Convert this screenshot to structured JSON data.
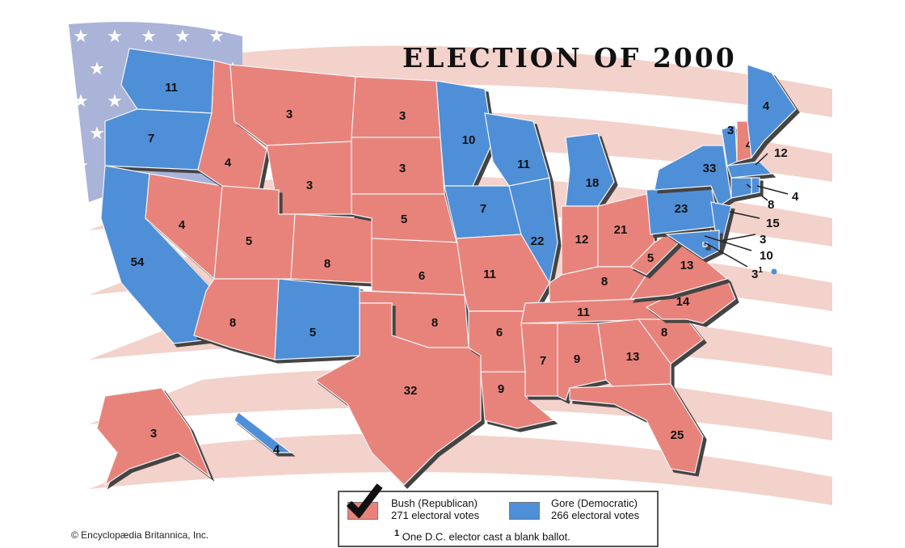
{
  "title": "ELECTION OF 2000",
  "copyright": "© Encyclopædia Britannica, Inc.",
  "colors": {
    "republican": "#e8837b",
    "democratic": "#4f8fd8",
    "flag_blue": "#aab3d8",
    "flag_stripe": "#f3d2cb"
  },
  "legend": {
    "bush": {
      "name": "Bush (Republican)",
      "votes": "271 electoral votes",
      "winner_icon": "checkmark-icon"
    },
    "gore": {
      "name": "Gore (Democratic)",
      "votes": "266 electoral votes"
    },
    "footnote_mark": "1",
    "footnote": "One D.C. elector cast a blank ballot."
  },
  "states": [
    {
      "id": "WA",
      "votes": "11",
      "party": "D"
    },
    {
      "id": "OR",
      "votes": "7",
      "party": "D"
    },
    {
      "id": "CA",
      "votes": "54",
      "party": "D"
    },
    {
      "id": "NV",
      "votes": "4",
      "party": "R"
    },
    {
      "id": "ID",
      "votes": "4",
      "party": "R"
    },
    {
      "id": "MT",
      "votes": "3",
      "party": "R"
    },
    {
      "id": "WY",
      "votes": "3",
      "party": "R"
    },
    {
      "id": "UT",
      "votes": "5",
      "party": "R"
    },
    {
      "id": "CO",
      "votes": "8",
      "party": "R"
    },
    {
      "id": "AZ",
      "votes": "8",
      "party": "R"
    },
    {
      "id": "NM",
      "votes": "5",
      "party": "D"
    },
    {
      "id": "ND",
      "votes": "3",
      "party": "R"
    },
    {
      "id": "SD",
      "votes": "3",
      "party": "R"
    },
    {
      "id": "NE",
      "votes": "5",
      "party": "R"
    },
    {
      "id": "KS",
      "votes": "6",
      "party": "R"
    },
    {
      "id": "OK",
      "votes": "8",
      "party": "R"
    },
    {
      "id": "TX",
      "votes": "32",
      "party": "R"
    },
    {
      "id": "MN",
      "votes": "10",
      "party": "D"
    },
    {
      "id": "IA",
      "votes": "7",
      "party": "D"
    },
    {
      "id": "MO",
      "votes": "11",
      "party": "R"
    },
    {
      "id": "AR",
      "votes": "6",
      "party": "R"
    },
    {
      "id": "LA",
      "votes": "9",
      "party": "R"
    },
    {
      "id": "WI",
      "votes": "11",
      "party": "D"
    },
    {
      "id": "IL",
      "votes": "22",
      "party": "D"
    },
    {
      "id": "MI",
      "votes": "18",
      "party": "D"
    },
    {
      "id": "IN",
      "votes": "12",
      "party": "R"
    },
    {
      "id": "OH",
      "votes": "21",
      "party": "R"
    },
    {
      "id": "KY",
      "votes": "8",
      "party": "R"
    },
    {
      "id": "TN",
      "votes": "11",
      "party": "R"
    },
    {
      "id": "MS",
      "votes": "7",
      "party": "R"
    },
    {
      "id": "AL",
      "votes": "9",
      "party": "R"
    },
    {
      "id": "GA",
      "votes": "13",
      "party": "R"
    },
    {
      "id": "FL",
      "votes": "25",
      "party": "R"
    },
    {
      "id": "SC",
      "votes": "8",
      "party": "R"
    },
    {
      "id": "NC",
      "votes": "14",
      "party": "R"
    },
    {
      "id": "VA",
      "votes": "13",
      "party": "R"
    },
    {
      "id": "WV",
      "votes": "5",
      "party": "R"
    },
    {
      "id": "PA",
      "votes": "23",
      "party": "D"
    },
    {
      "id": "NY",
      "votes": "33",
      "party": "D"
    },
    {
      "id": "NJ",
      "votes": "15",
      "party": "D"
    },
    {
      "id": "DE",
      "votes": "3",
      "party": "D"
    },
    {
      "id": "MD",
      "votes": "10",
      "party": "D"
    },
    {
      "id": "DC",
      "votes": "3",
      "footnote": "1",
      "party": "D"
    },
    {
      "id": "VT",
      "votes": "3",
      "party": "D"
    },
    {
      "id": "NH",
      "votes": "4",
      "party": "R"
    },
    {
      "id": "ME",
      "votes": "4",
      "party": "D"
    },
    {
      "id": "MA",
      "votes": "12",
      "party": "D"
    },
    {
      "id": "CT",
      "votes": "8",
      "party": "D"
    },
    {
      "id": "RI",
      "votes": "4",
      "party": "D"
    },
    {
      "id": "AK",
      "votes": "3",
      "party": "R"
    },
    {
      "id": "HI",
      "votes": "4",
      "party": "D"
    }
  ]
}
